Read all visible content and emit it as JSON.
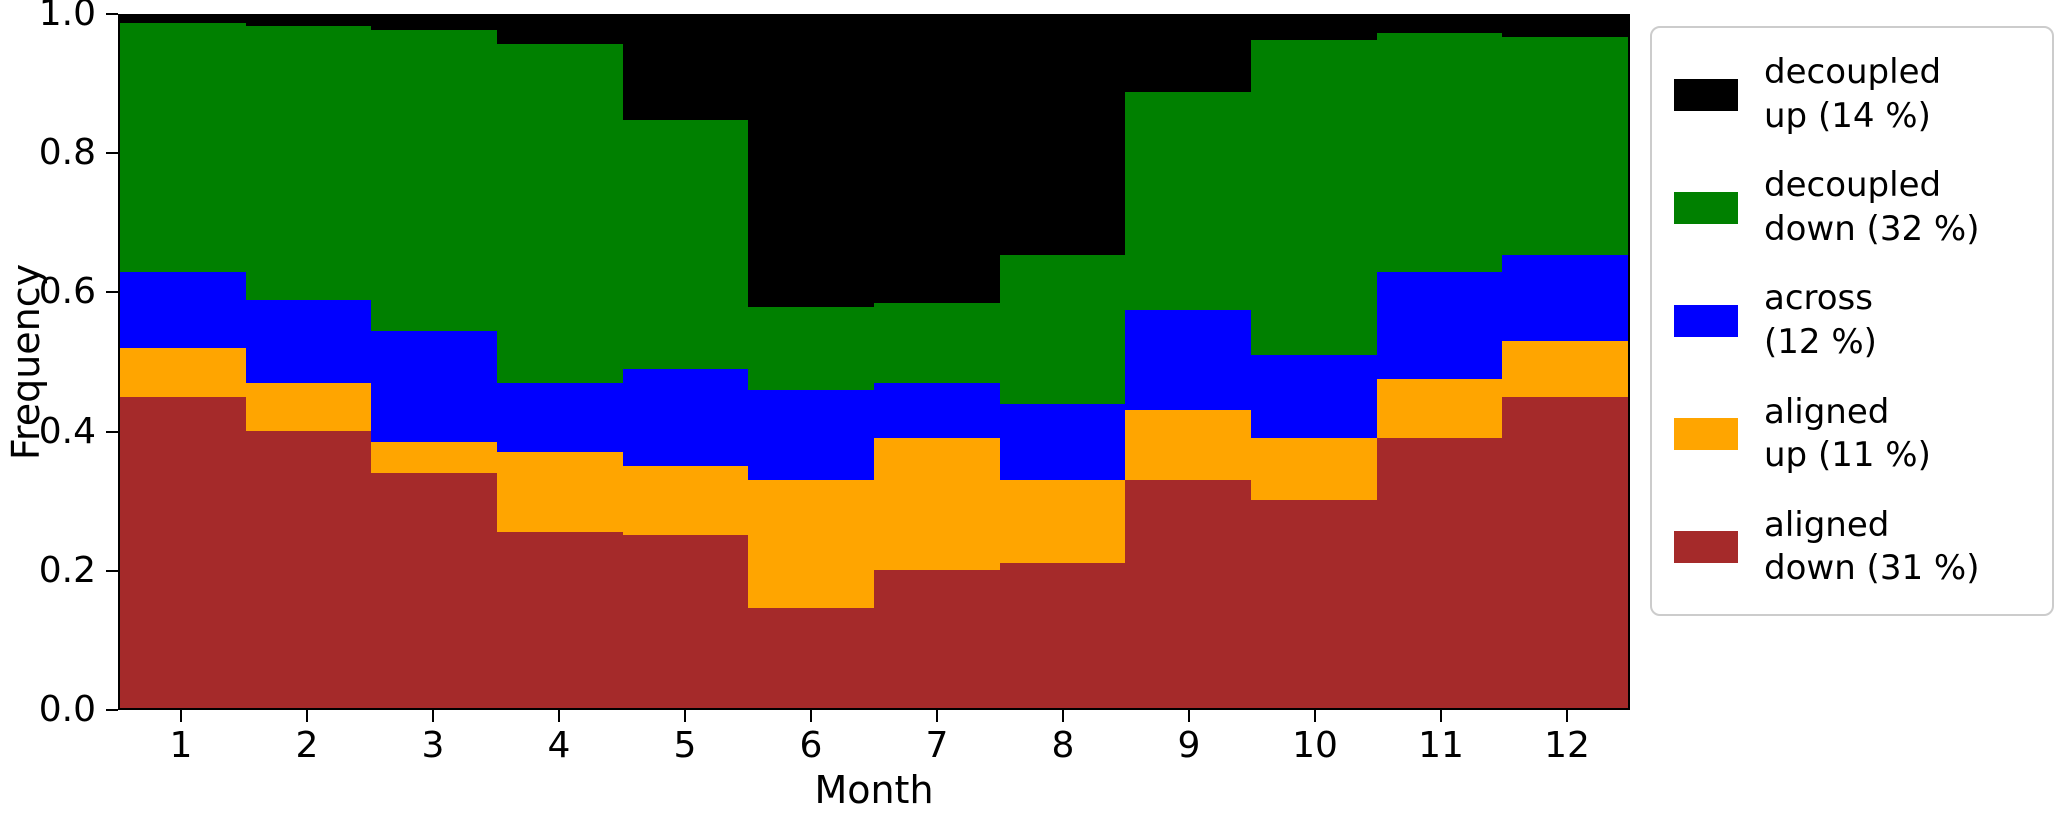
{
  "figure": {
    "xlabel": "Month",
    "ylabel": "Frequency"
  },
  "chart_data": {
    "type": "bar",
    "stacked": true,
    "title": "",
    "xlabel": "Month",
    "ylabel": "Frequency",
    "grid": false,
    "ylim": [
      0.0,
      1.0
    ],
    "ytick_labels": [
      "0.0",
      "0.2",
      "0.4",
      "0.6",
      "0.8",
      "1.0"
    ],
    "ytick_values": [
      0.0,
      0.2,
      0.4,
      0.6,
      0.8,
      1.0
    ],
    "categories": [
      "1",
      "2",
      "3",
      "4",
      "5",
      "6",
      "7",
      "8",
      "9",
      "10",
      "11",
      "12"
    ],
    "series": [
      {
        "name": "aligned down (31 %)",
        "color": "#A52A2A",
        "values": [
          0.45,
          0.4,
          0.34,
          0.255,
          0.25,
          0.145,
          0.2,
          0.21,
          0.33,
          0.3,
          0.39,
          0.45
        ]
      },
      {
        "name": "aligned up (11 %)",
        "color": "#FFA500",
        "values": [
          0.07,
          0.07,
          0.045,
          0.115,
          0.1,
          0.185,
          0.19,
          0.12,
          0.1,
          0.09,
          0.085,
          0.08
        ]
      },
      {
        "name": "across (12 %)",
        "color": "#0000FF",
        "values": [
          0.11,
          0.12,
          0.16,
          0.1,
          0.14,
          0.13,
          0.08,
          0.11,
          0.145,
          0.12,
          0.155,
          0.125
        ]
      },
      {
        "name": "decoupled down (32 %)",
        "color": "#008000",
        "values": [
          0.36,
          0.395,
          0.435,
          0.49,
          0.36,
          0.12,
          0.115,
          0.215,
          0.315,
          0.455,
          0.345,
          0.315
        ]
      },
      {
        "name": "decoupled up (14 %)",
        "color": "#000000",
        "values": [
          0.01,
          0.015,
          0.02,
          0.04,
          0.15,
          0.42,
          0.415,
          0.345,
          0.11,
          0.035,
          0.025,
          0.03
        ]
      }
    ],
    "legend": {
      "position": "right-outside",
      "entries": [
        {
          "color": "#000000",
          "lines": [
            "decoupled",
            "up (14 %)"
          ]
        },
        {
          "color": "#008000",
          "lines": [
            "decoupled",
            "down (32 %)"
          ]
        },
        {
          "color": "#0000FF",
          "lines": [
            "across",
            "(12 %)"
          ]
        },
        {
          "color": "#FFA500",
          "lines": [
            "aligned",
            "up (11 %)"
          ]
        },
        {
          "color": "#A52A2A",
          "lines": [
            "aligned",
            "down (31 %)"
          ]
        }
      ]
    }
  }
}
